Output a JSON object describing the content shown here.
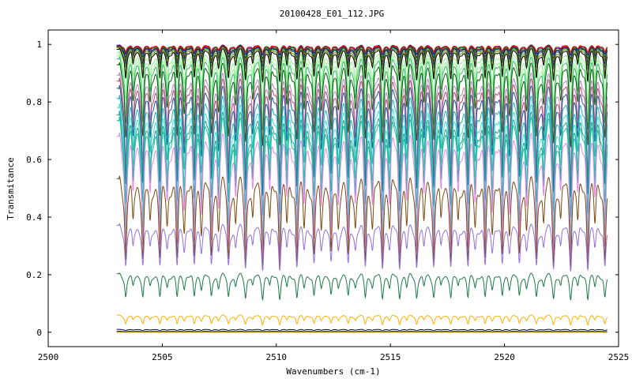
{
  "chart_data": {
    "type": "line",
    "title": "20100428_E01_112.JPG",
    "xlabel": "Wavenumbers (cm-1)",
    "ylabel": "Transmitance",
    "xlim": [
      2500,
      2525
    ],
    "ylim": [
      -0.05,
      1.05
    ],
    "x_ticks": [
      2500,
      2505,
      2510,
      2515,
      2520,
      2525
    ],
    "y_ticks": [
      0,
      0.2,
      0.4,
      0.6,
      0.8,
      1
    ],
    "y_tick_labels": [
      "0",
      "0.2",
      "0.4",
      "0.6",
      "0.8",
      "1"
    ],
    "grid": false,
    "legend": false,
    "x_start": 2503.0,
    "x_end": 2524.5,
    "line_spacing_cm-1": 0.75,
    "first_line_cm-1": 2503.4,
    "series": [
      {
        "color": "#0000ff",
        "baseline": 0.998,
        "depth": 0.03
      },
      {
        "color": "#006400",
        "baseline": 0.997,
        "depth": 0.04
      },
      {
        "color": "#ff0000",
        "baseline": 0.996,
        "depth": 0.02
      },
      {
        "color": "#8b4513",
        "baseline": 0.995,
        "depth": 0.05
      },
      {
        "color": "#000080",
        "baseline": 0.994,
        "depth": 0.06
      },
      {
        "color": "#2e8b57",
        "baseline": 0.992,
        "depth": 0.07
      },
      {
        "color": "#808000",
        "baseline": 0.99,
        "depth": 0.09
      },
      {
        "color": "#000000",
        "baseline": 0.985,
        "depth": 0.1
      },
      {
        "color": "#90ee90",
        "baseline": 0.975,
        "depth": 0.16
      },
      {
        "color": "#98fb98",
        "baseline": 0.965,
        "depth": 0.2
      },
      {
        "color": "#3cb371",
        "baseline": 0.955,
        "depth": 0.22
      },
      {
        "color": "#006400",
        "baseline": 0.935,
        "depth": 0.25
      },
      {
        "color": "#c080c0",
        "baseline": 0.9,
        "depth": 0.3
      },
      {
        "color": "#b05070",
        "baseline": 0.88,
        "depth": 0.32
      },
      {
        "color": "#1e5aa0",
        "baseline": 0.855,
        "depth": 0.33
      },
      {
        "color": "#20b2aa",
        "baseline": 0.82,
        "depth": 0.36
      },
      {
        "color": "#40e0d0",
        "baseline": 0.79,
        "depth": 0.4
      },
      {
        "color": "#2a9d8f",
        "baseline": 0.765,
        "depth": 0.42
      },
      {
        "color": "#20c0a0",
        "baseline": 0.745,
        "depth": 0.42
      },
      {
        "color": "#ee82ee",
        "baseline": 0.69,
        "depth": 0.38
      },
      {
        "color": "#7b4a12",
        "baseline": 0.54,
        "depth": 0.28
      },
      {
        "color": "#9370db",
        "baseline": 0.375,
        "depth": 0.14
      },
      {
        "color": "#1b7a4a",
        "baseline": 0.205,
        "depth": 0.08
      },
      {
        "color": "#ffb000",
        "baseline": 0.06,
        "depth": 0.03
      },
      {
        "color": "#000080",
        "baseline": 0.01,
        "depth": 0.005
      },
      {
        "color": "#000000",
        "baseline": 0.003,
        "depth": 0.002
      },
      {
        "color": "#cc8800",
        "baseline": 0.0,
        "depth": 0.0
      }
    ]
  }
}
